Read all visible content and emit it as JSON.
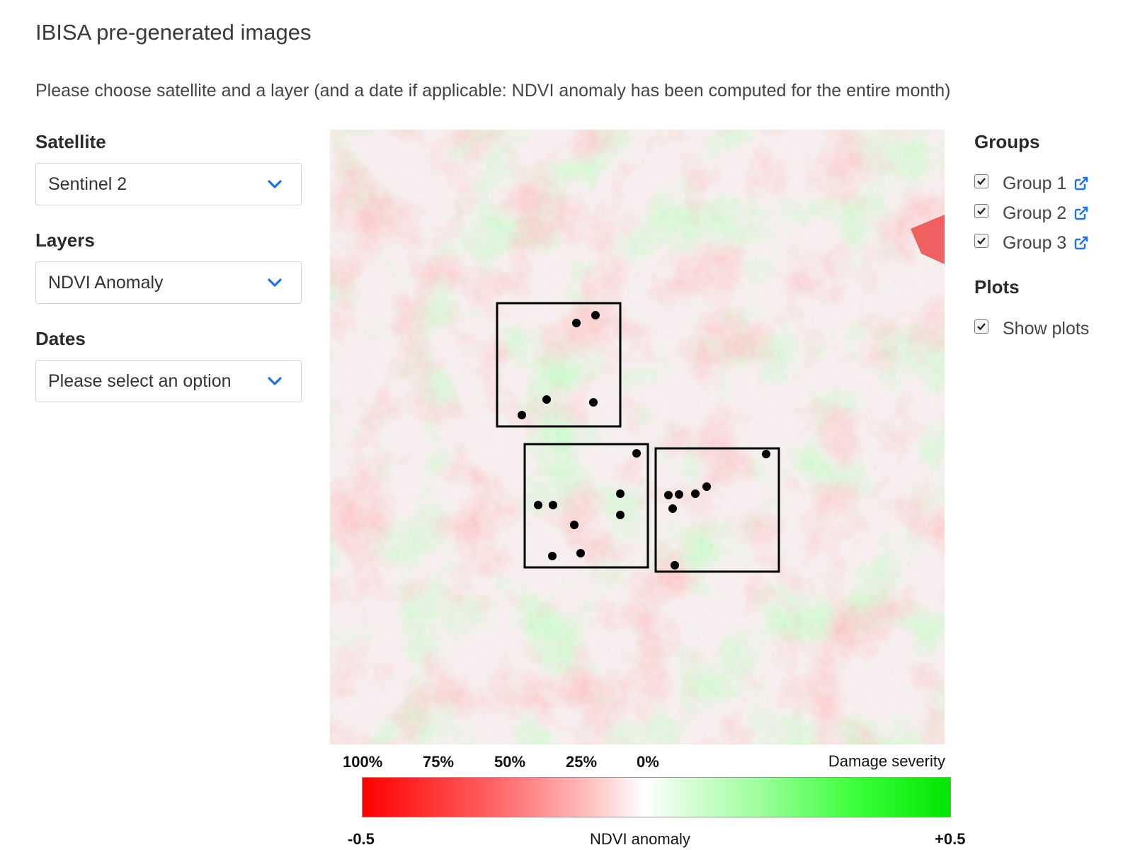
{
  "page": {
    "title": "IBISA pre-generated images",
    "instructions": "Please choose satellite and a layer (and a date if applicable: NDVI anomaly has been computed for the entire month)"
  },
  "sidebar": {
    "satellite": {
      "label": "Satellite",
      "value": "Sentinel 2",
      "icon": "chevron-down-icon"
    },
    "layers": {
      "label": "Layers",
      "value": "NDVI Anomaly",
      "icon": "chevron-down-icon"
    },
    "dates": {
      "label": "Dates",
      "value": "Please select an option",
      "icon": "chevron-down-icon"
    }
  },
  "groups": {
    "title": "Groups",
    "items": [
      {
        "label": "Group 1",
        "checked": true,
        "icon": "external-link-icon"
      },
      {
        "label": "Group 2",
        "checked": true,
        "icon": "external-link-icon"
      },
      {
        "label": "Group 3",
        "checked": true,
        "icon": "external-link-icon"
      }
    ]
  },
  "plots": {
    "title": "Plots",
    "show_plots": {
      "label": "Show plots",
      "checked": true
    }
  },
  "legend": {
    "severity_title": "Damage severity",
    "severity_ticks": [
      "100%",
      "75%",
      "50%",
      "25%",
      "0%"
    ],
    "anomaly_title": "NDVI anomaly",
    "min": "-0.5",
    "max": "+0.5",
    "colors": {
      "low": "#ff0000",
      "mid": "#ffffff",
      "high": "#00e600"
    }
  },
  "colors": {
    "accent": "#1a73e8",
    "text": "#444444"
  }
}
